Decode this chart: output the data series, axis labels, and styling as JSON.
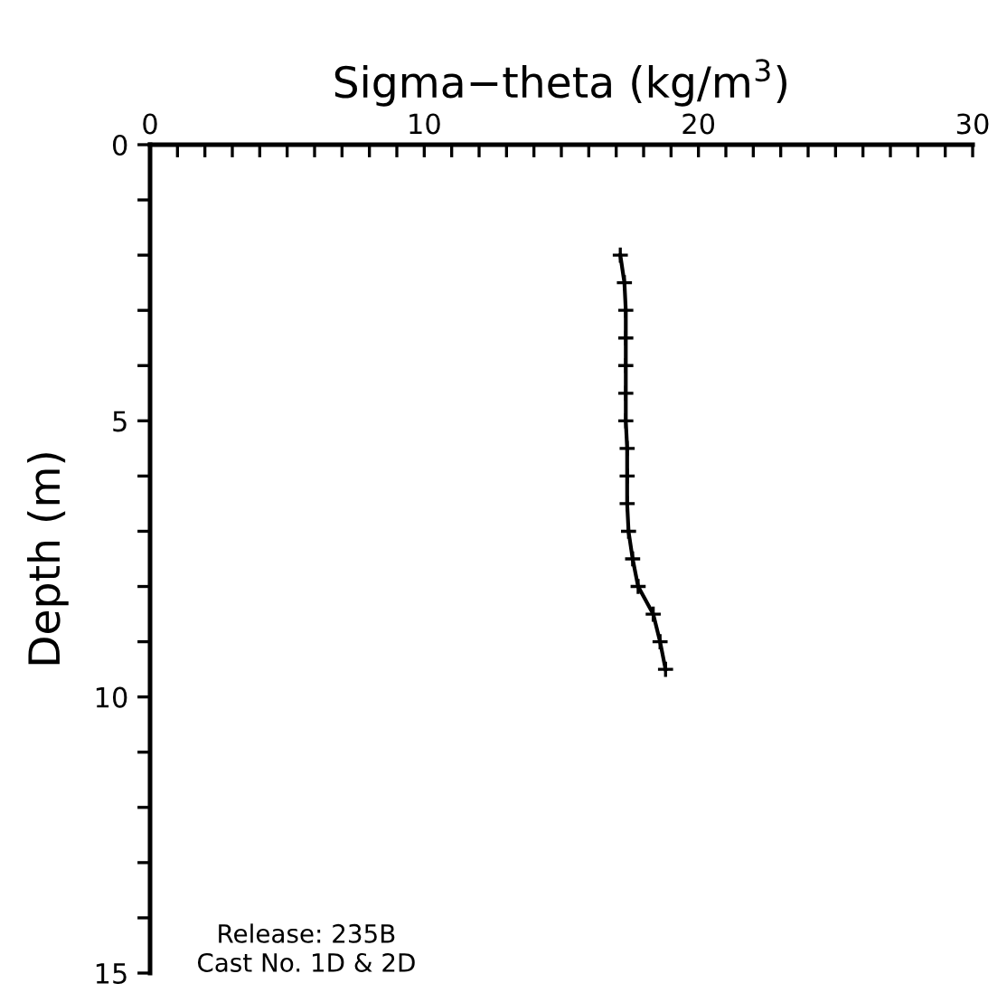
{
  "chart_data": {
    "type": "line",
    "xlabel": "Sigma−theta (kg/m$^{3}$)",
    "ylabel": "Depth (m)",
    "xlim": [
      0,
      30
    ],
    "xticks": [
      0,
      {
        "value": 1,
        "label": null
      },
      {
        "value": 2,
        "label": null
      },
      {
        "value": 3,
        "label": null
      },
      {
        "value": 4,
        "label": null
      },
      {
        "value": 5,
        "label": null
      },
      {
        "value": 6,
        "label": null
      },
      {
        "value": 7,
        "label": null
      },
      {
        "value": 8,
        "label": null
      },
      {
        "value": 9,
        "label": null
      },
      10,
      {
        "value": 11,
        "label": null
      },
      {
        "value": 12,
        "label": null
      },
      {
        "value": 13,
        "label": null
      },
      {
        "value": 14,
        "label": null
      },
      {
        "value": 15,
        "label": null
      },
      {
        "value": 16,
        "label": null
      },
      {
        "value": 17,
        "label": null
      },
      {
        "value": 18,
        "label": null
      },
      {
        "value": 19,
        "label": null
      },
      20,
      {
        "value": 21,
        "label": null
      },
      {
        "value": 22,
        "label": null
      },
      {
        "value": 23,
        "label": null
      },
      {
        "value": 24,
        "label": null
      },
      {
        "value": 25,
        "label": null
      },
      {
        "value": 26,
        "label": null
      },
      {
        "value": 27,
        "label": null
      },
      {
        "value": 28,
        "label": null
      },
      {
        "value": 29,
        "label": null
      },
      30
    ],
    "ylim": [
      15,
      0
    ],
    "yticks": [
      0,
      {
        "value": 1,
        "label": null
      },
      {
        "value": 2,
        "label": null
      },
      {
        "value": 3,
        "label": null
      },
      {
        "value": 4,
        "label": null
      },
      5,
      {
        "value": 6,
        "label": null
      },
      {
        "value": 7,
        "label": null
      },
      {
        "value": 8,
        "label": null
      },
      {
        "value": 9,
        "label": null
      },
      10,
      {
        "value": 11,
        "label": null
      },
      {
        "value": 12,
        "label": null
      },
      {
        "value": 13,
        "label": null
      },
      {
        "value": 14,
        "label": null
      },
      15
    ],
    "series": [
      {
        "color": "#000000",
        "x": [
          17.15,
          17.3,
          17.35,
          17.35,
          17.35,
          17.35,
          17.35,
          17.4,
          17.4,
          17.4,
          17.45,
          17.6,
          17.8,
          18.35,
          18.6,
          18.8
        ],
        "values": [
          2.0,
          2.5,
          3.0,
          3.5,
          4.0,
          4.5,
          5.0,
          5.5,
          6.0,
          6.5,
          7.0,
          7.5,
          8.0,
          8.5,
          9.0,
          9.5
        ]
      }
    ],
    "marker": "cross",
    "line_style": "solid",
    "grid": false,
    "legend": false,
    "annotations": [
      "Release: 235B",
      "Cast No. 1D & 2D"
    ]
  }
}
